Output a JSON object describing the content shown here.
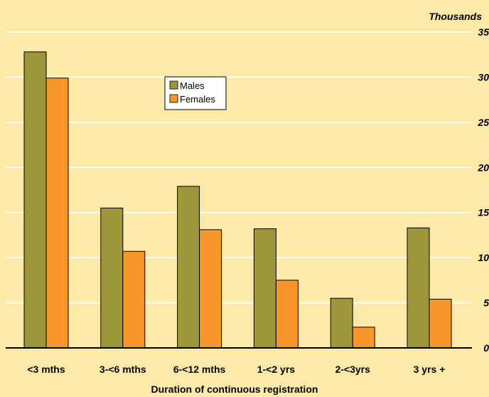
{
  "chart_data": {
    "type": "bar",
    "categories": [
      "<3 mths",
      "3-<6 mths",
      "6-<12 mths",
      "1-<2 yrs",
      "2-<3yrs",
      "3 yrs +"
    ],
    "series": [
      {
        "name": "Males",
        "values": [
          32.8,
          15.5,
          17.9,
          13.2,
          5.5,
          13.3
        ],
        "color": "#9e963a"
      },
      {
        "name": "Females",
        "values": [
          29.9,
          10.7,
          13.1,
          7.5,
          2.3,
          5.4
        ],
        "color": "#f7962a"
      }
    ],
    "xlabel": "Duration of continuous registration",
    "units_label": "Thousands",
    "ylim": [
      0,
      35
    ],
    "yticks": [
      "0",
      "5",
      "10",
      "15",
      "20",
      "25",
      "30",
      "35"
    ],
    "y_axis_side": "right",
    "grid": true,
    "legend_position": "upper-center",
    "colors": {
      "background": "#fde9a8",
      "grid": "#ffffff",
      "axis": "#000000"
    }
  }
}
